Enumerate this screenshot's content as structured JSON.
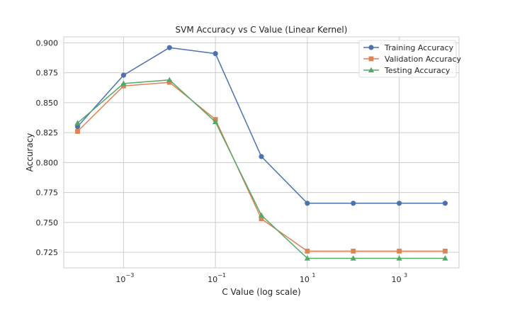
{
  "chart_data": {
    "type": "line",
    "title": "SVM Accuracy vs C Value (Linear Kernel)",
    "xlabel": "C Value (log scale)",
    "ylabel": "Accuracy",
    "x_scale": "log",
    "x": [
      0.0001,
      0.001,
      0.01,
      0.1,
      1,
      10,
      100,
      1000,
      10000
    ],
    "x_ticks": [
      {
        "value": 0.001,
        "base": "10",
        "exp": "−3"
      },
      {
        "value": 0.1,
        "base": "10",
        "exp": "−1"
      },
      {
        "value": 10,
        "base": "10",
        "exp": "1"
      },
      {
        "value": 1000,
        "base": "10",
        "exp": "3"
      }
    ],
    "xlim": [
      5e-05,
      20000
    ],
    "ylim": [
      0.712,
      0.905
    ],
    "y_ticks": [
      "0.725",
      "0.750",
      "0.775",
      "0.800",
      "0.825",
      "0.850",
      "0.875",
      "0.900"
    ],
    "grid": true,
    "legend_position": "top-right",
    "series": [
      {
        "name": "Training Accuracy",
        "color": "#4c72b0",
        "marker": "circle",
        "values": [
          0.83,
          0.873,
          0.896,
          0.891,
          0.805,
          0.766,
          0.766,
          0.766,
          0.766
        ]
      },
      {
        "name": "Validation Accuracy",
        "color": "#dd8452",
        "marker": "square",
        "values": [
          0.826,
          0.864,
          0.867,
          0.836,
          0.753,
          0.726,
          0.726,
          0.726,
          0.726
        ]
      },
      {
        "name": "Testing Accuracy",
        "color": "#55a868",
        "marker": "triangle",
        "values": [
          0.833,
          0.866,
          0.869,
          0.834,
          0.756,
          0.72,
          0.72,
          0.72,
          0.72
        ]
      }
    ]
  }
}
